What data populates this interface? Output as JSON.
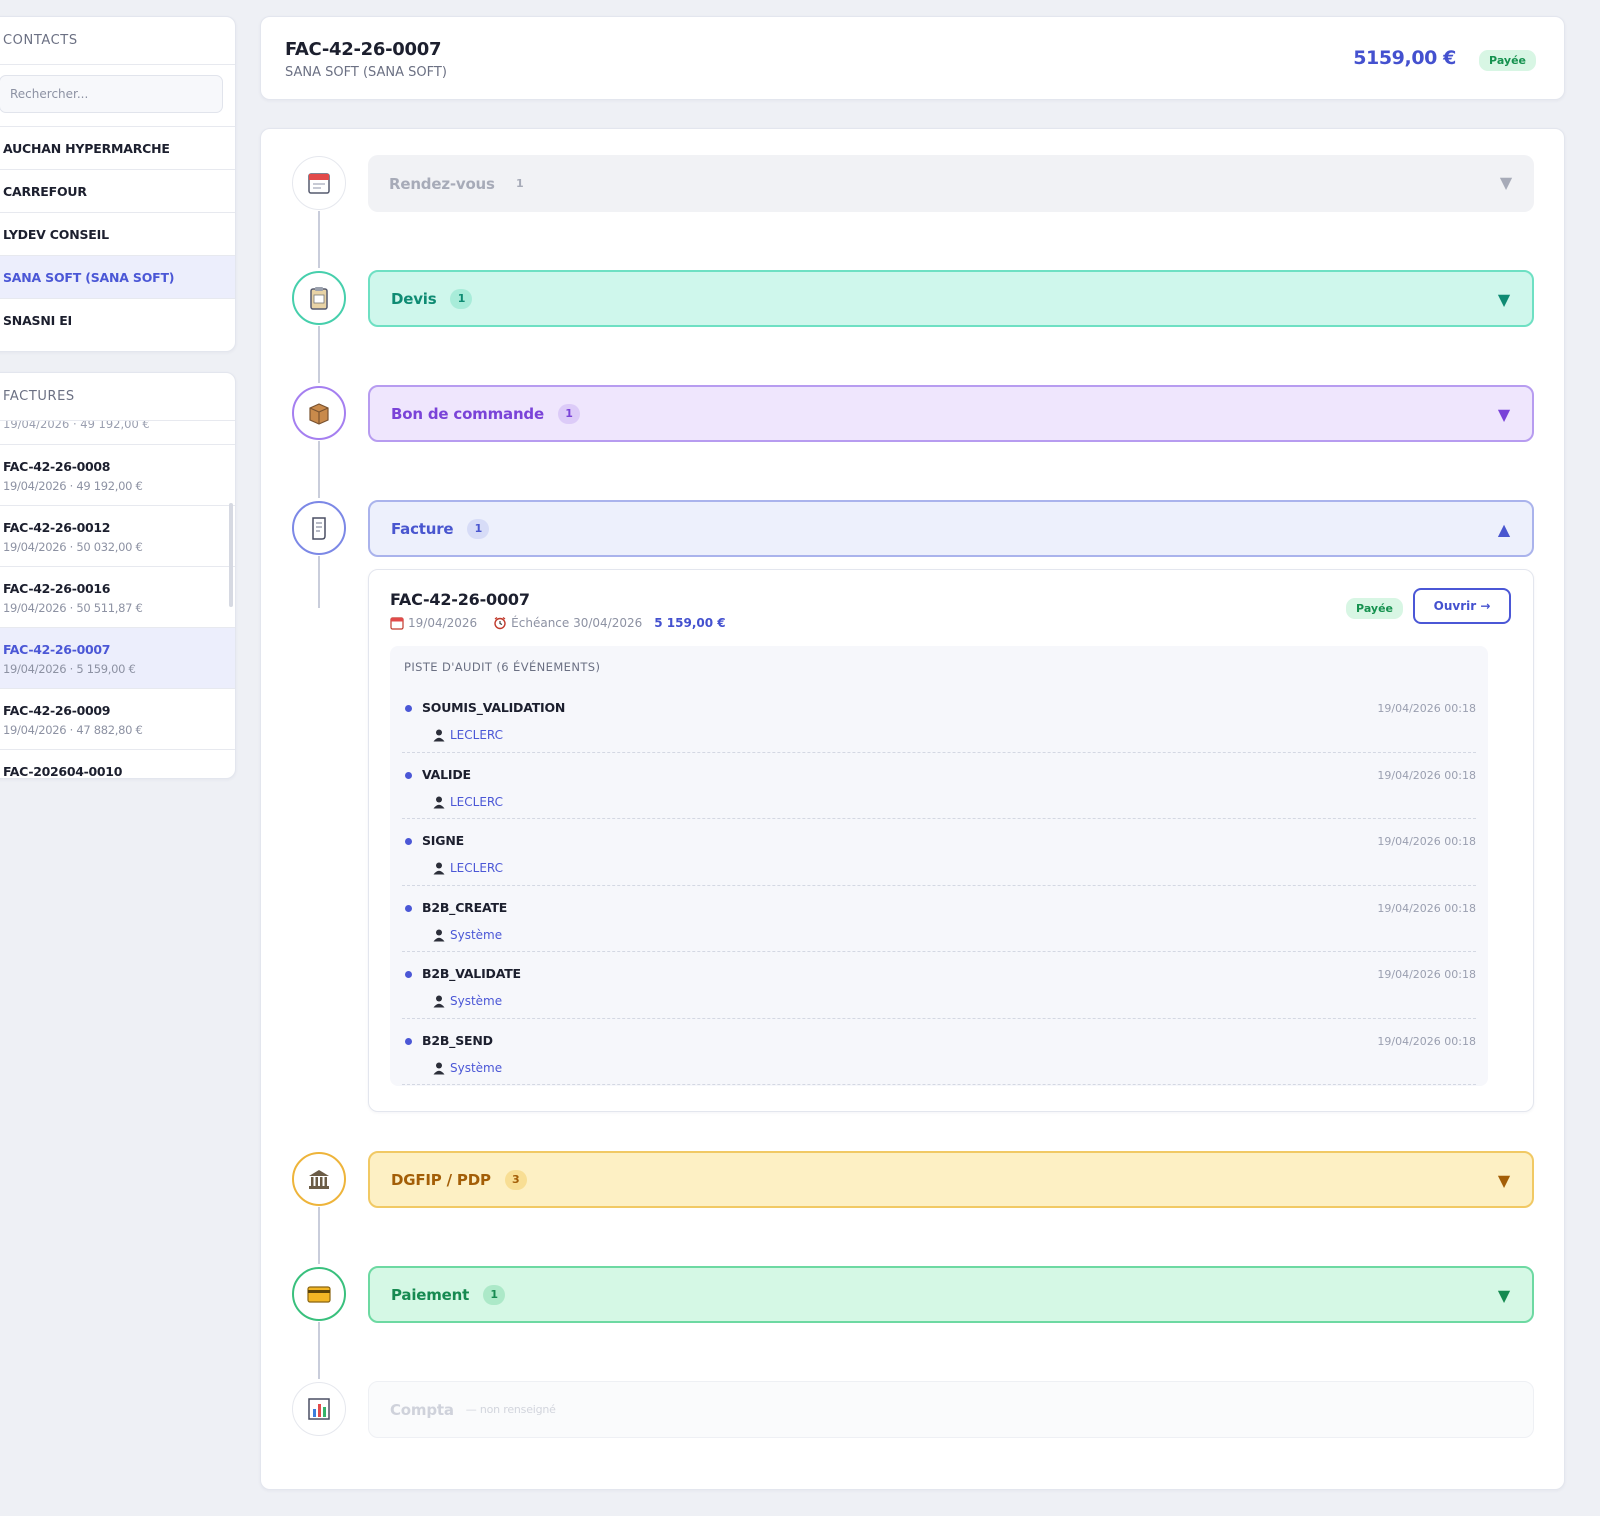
{
  "sidebar": {
    "contacts_title": "CONTACTS",
    "search_placeholder": "Rechercher...",
    "contacts": [
      {
        "label": "AUCHAN HYPERMARCHE",
        "active": false
      },
      {
        "label": "CARREFOUR",
        "active": false
      },
      {
        "label": "LYDEV CONSEIL",
        "active": false
      },
      {
        "label": "SANA SOFT (SANA SOFT)",
        "active": true
      },
      {
        "label": "SNASNI EI",
        "active": false
      }
    ],
    "factures_title": "FACTURES",
    "factures_partial": "19/04/2026 · 49 192,00 €",
    "factures": [
      {
        "num": "FAC-42-26-0008",
        "meta": "19/04/2026 · 49 192,00 €",
        "active": false
      },
      {
        "num": "FAC-42-26-0012",
        "meta": "19/04/2026 · 50 032,00 €",
        "active": false
      },
      {
        "num": "FAC-42-26-0016",
        "meta": "19/04/2026 · 50 511,87 €",
        "active": false
      },
      {
        "num": "FAC-42-26-0007",
        "meta": "19/04/2026 · 5 159,00 €",
        "active": true
      },
      {
        "num": "FAC-42-26-0009",
        "meta": "19/04/2026 · 47 882,80 €",
        "active": false
      },
      {
        "num": "FAC-202604-0010",
        "meta": "",
        "active": false
      }
    ]
  },
  "header": {
    "title": "FAC-42-26-0007",
    "subtitle": "SANA SOFT (SANA SOFT)",
    "amount": "5159,00 €",
    "status": "Payée"
  },
  "timeline": {
    "stages": {
      "rdv": {
        "label": "Rendez-vous",
        "count": "1",
        "chevron": "▼",
        "icon": "calendar-icon"
      },
      "devis": {
        "label": "Devis",
        "count": "1",
        "chevron": "▼",
        "icon": "clipboard-icon"
      },
      "bdc": {
        "label": "Bon de commande",
        "count": "1",
        "chevron": "▼",
        "icon": "package-icon"
      },
      "facture": {
        "label": "Facture",
        "count": "1",
        "chevron": "▲",
        "icon": "document-icon"
      },
      "dgfip": {
        "label": "DGFIP / PDP",
        "count": "3",
        "chevron": "▼",
        "icon": "government-building-icon"
      },
      "paiement": {
        "label": "Paiement",
        "count": "1",
        "chevron": "▼",
        "icon": "credit-card-icon"
      },
      "compta": {
        "label": "Compta",
        "note": "— non renseigné",
        "icon": "bar-chart-icon"
      }
    },
    "invoice": {
      "num": "FAC-42-26-0007",
      "date": "19/04/2026",
      "due": "Échéance 30/04/2026",
      "amount": "5 159,00 €",
      "status": "Payée",
      "open_label": "Ouvrir →",
      "audit_title": "PISTE D'AUDIT (6 ÉVÉNEMENTS)",
      "events": [
        {
          "name": "SOUMIS_VALIDATION",
          "user": "LECLERC",
          "time": "19/04/2026 00:18"
        },
        {
          "name": "VALIDE",
          "user": "LECLERC",
          "time": "19/04/2026 00:18"
        },
        {
          "name": "SIGNE",
          "user": "LECLERC",
          "time": "19/04/2026 00:18"
        },
        {
          "name": "B2B_CREATE",
          "user": "Système",
          "time": "19/04/2026 00:18"
        },
        {
          "name": "B2B_VALIDATE",
          "user": "Système",
          "time": "19/04/2026 00:18"
        },
        {
          "name": "B2B_SEND",
          "user": "Système",
          "time": "19/04/2026 00:18"
        }
      ]
    }
  },
  "colors": {
    "accent": "#4b57d6",
    "paid_bg": "#d8f6e4",
    "paid_fg": "#16924f",
    "devis": "#0f8b73",
    "bdc": "#7a43d8",
    "dgfip": "#a35e07",
    "paiement": "#168a51"
  }
}
